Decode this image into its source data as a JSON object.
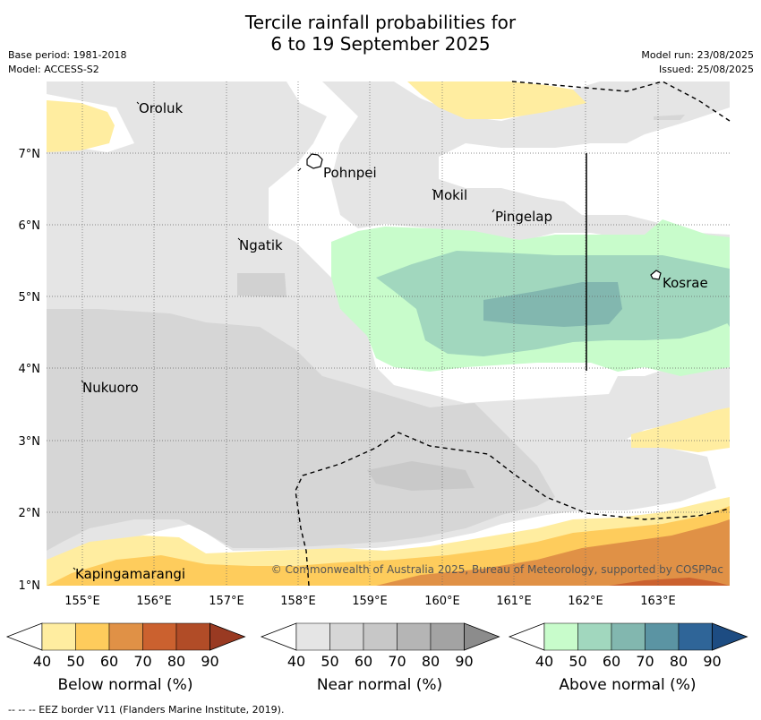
{
  "header": {
    "title_line1": "Tercile rainfall probabilities for",
    "title_line2": "6 to 19 September 2025",
    "base_period": "Base period: 1981-2018",
    "model": "Model: ACCESS-S2",
    "model_run": "Model run: 23/08/2025",
    "issued": "Issued: 25/08/2025"
  },
  "map": {
    "lat_ticks": [
      "1°N",
      "2°N",
      "3°N",
      "4°N",
      "5°N",
      "6°N",
      "7°N"
    ],
    "lon_ticks": [
      "155°E",
      "156°E",
      "157°E",
      "158°E",
      "159°E",
      "160°E",
      "161°E",
      "162°E",
      "163°E"
    ],
    "places": [
      {
        "name": "Oroluk"
      },
      {
        "name": "Pohnpei"
      },
      {
        "name": "Mokil"
      },
      {
        "name": "Pingelap"
      },
      {
        "name": "Ngatik"
      },
      {
        "name": "Kosrae"
      },
      {
        "name": "Nukuoro"
      },
      {
        "name": "Kapingamarangi"
      }
    ],
    "copyright": "© Commonwealth of Australia 2025, Bureau of Meteorology, supported by COSPPac"
  },
  "legends": [
    {
      "label": "Below normal (%)",
      "ticks": [
        "40",
        "50",
        "60",
        "70",
        "80",
        "90"
      ],
      "colors": [
        "#ffeda0",
        "#fecc5c",
        "#e09146",
        "#cb612f",
        "#b14c27",
        "#993a22"
      ]
    },
    {
      "label": "Near normal (%)",
      "ticks": [
        "40",
        "50",
        "60",
        "70",
        "80",
        "90"
      ],
      "colors": [
        "#e5e5e5",
        "#d6d6d6",
        "#c7c7c7",
        "#b5b5b5",
        "#a3a3a3",
        "#8c8c8c"
      ]
    },
    {
      "label": "Above normal (%)",
      "ticks": [
        "40",
        "50",
        "60",
        "70",
        "80",
        "90"
      ],
      "colors": [
        "#c8fccb",
        "#a1d7be",
        "#82b7af",
        "#5b94a3",
        "#2f6598",
        "#1d4c82"
      ]
    }
  ],
  "footnote": "--  --  -- EEZ border V11 (Flanders Marine Institute, 2019)."
}
